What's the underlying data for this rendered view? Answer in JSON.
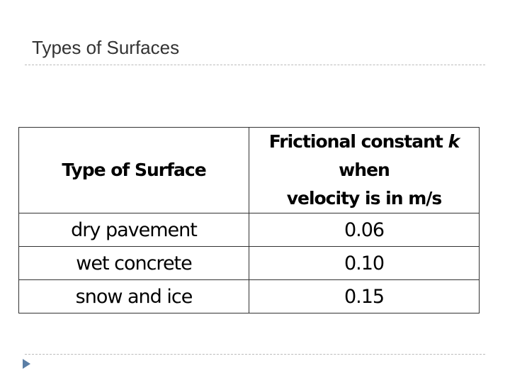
{
  "title": "Types of Surfaces",
  "table": {
    "header": [
      "Type of Surface",
      {
        "line1": [
          "Frictional constant",
          "k",
          "when"
        ],
        "line2": "velocity is in m/s"
      }
    ],
    "rows": [
      [
        "dry pavement",
        "0.06"
      ],
      [
        "wet concrete",
        "0.10"
      ],
      [
        "snow and ice",
        "0.15"
      ]
    ]
  }
}
